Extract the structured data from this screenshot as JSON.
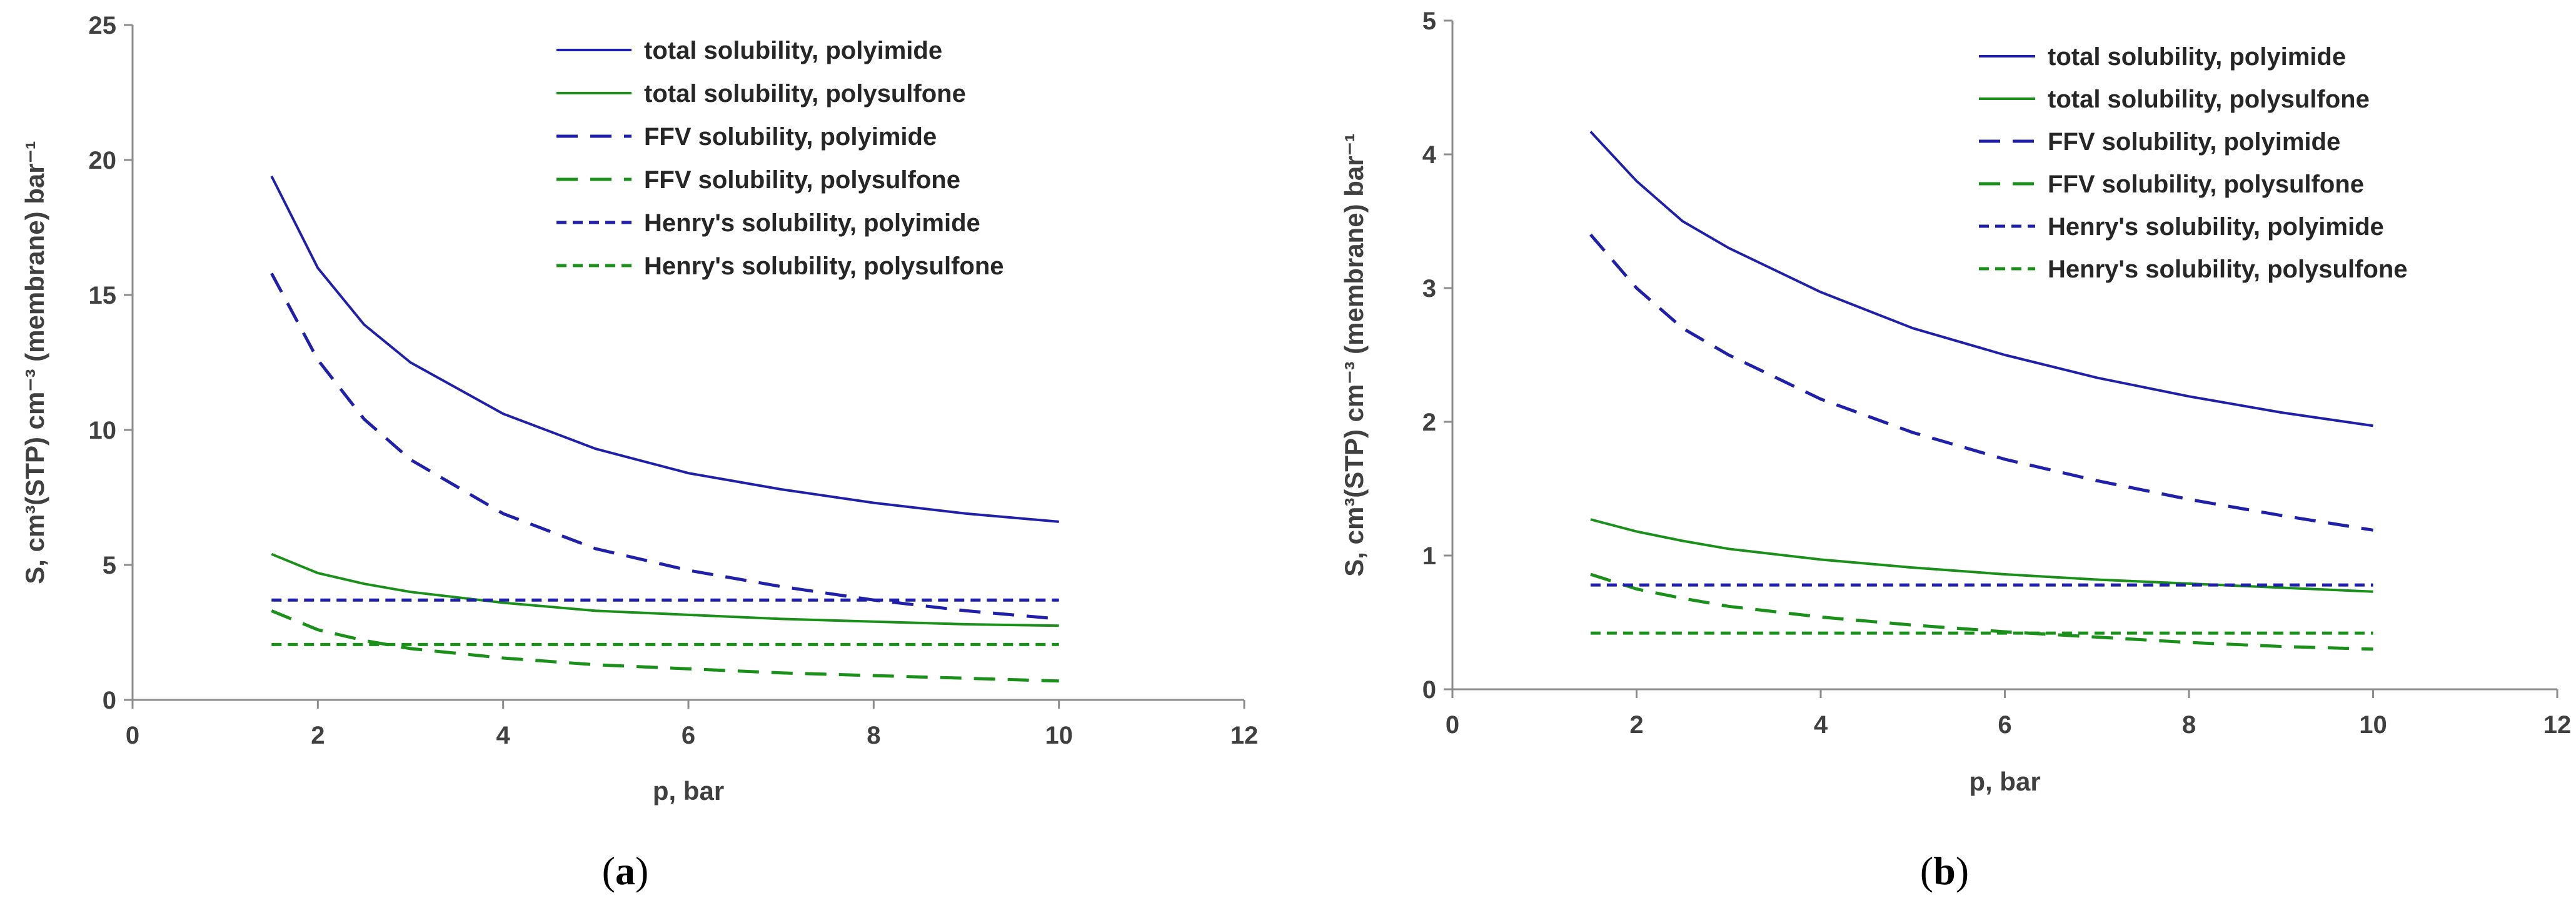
{
  "colors": {
    "polyimide": "#1f1faa",
    "polysulfone": "#1a8f1a",
    "axis": "#8c8c8c",
    "text": "#404040"
  },
  "chart_data": [
    {
      "type": "line",
      "panel_label": "a",
      "xlabel": "p, bar",
      "ylabel": "S, cm³(STP) cm⁻³ (membrane) bar⁻¹",
      "xlim": [
        0,
        12
      ],
      "ylim": [
        0,
        25
      ],
      "xticks": [
        0,
        2,
        4,
        6,
        8,
        10,
        12
      ],
      "yticks": [
        0,
        5,
        10,
        15,
        20,
        25
      ],
      "grid": false,
      "legend_position": "top-right",
      "x": [
        1.5,
        2,
        2.5,
        3,
        4,
        5,
        6,
        7,
        8,
        9,
        10
      ],
      "series": [
        {
          "name": "total solubility, polyimide",
          "style": "solid",
          "color_key": "polyimide",
          "values": [
            19.4,
            16.0,
            13.9,
            12.5,
            10.6,
            9.3,
            8.4,
            7.8,
            7.3,
            6.9,
            6.6
          ]
        },
        {
          "name": "total solubility, polysulfone",
          "style": "solid",
          "color_key": "polysulfone",
          "values": [
            5.4,
            4.7,
            4.3,
            4.0,
            3.6,
            3.3,
            3.15,
            3.0,
            2.9,
            2.8,
            2.75
          ]
        },
        {
          "name": "FFV solubility, polyimide",
          "style": "dashed",
          "color_key": "polyimide",
          "values": [
            15.8,
            12.6,
            10.4,
            8.9,
            6.9,
            5.6,
            4.8,
            4.2,
            3.7,
            3.3,
            3.0
          ]
        },
        {
          "name": "FFV solubility, polysulfone",
          "style": "dashed",
          "color_key": "polysulfone",
          "values": [
            3.3,
            2.6,
            2.2,
            1.9,
            1.55,
            1.3,
            1.15,
            1.0,
            0.9,
            0.8,
            0.7
          ]
        },
        {
          "name": "Henry's solubility, polyimide",
          "style": "dotted",
          "color_key": "polyimide",
          "values": [
            3.7,
            3.7,
            3.7,
            3.7,
            3.7,
            3.7,
            3.7,
            3.7,
            3.7,
            3.7,
            3.7
          ]
        },
        {
          "name": "Henry's solubility, polysulfone",
          "style": "dotted",
          "color_key": "polysulfone",
          "values": [
            2.05,
            2.05,
            2.05,
            2.05,
            2.05,
            2.05,
            2.05,
            2.05,
            2.05,
            2.05,
            2.05
          ]
        }
      ]
    },
    {
      "type": "line",
      "panel_label": "b",
      "xlabel": "p, bar",
      "ylabel": "S, cm³(STP) cm⁻³ (membrane) bar⁻¹",
      "xlim": [
        0,
        12
      ],
      "ylim": [
        0,
        5
      ],
      "xticks": [
        0,
        2,
        4,
        6,
        8,
        10,
        12
      ],
      "yticks": [
        0,
        1,
        2,
        3,
        4,
        5
      ],
      "grid": false,
      "legend_position": "top-right",
      "x": [
        1.5,
        2,
        2.5,
        3,
        4,
        5,
        6,
        7,
        8,
        9,
        10
      ],
      "series": [
        {
          "name": "total solubility, polyimide",
          "style": "solid",
          "color_key": "polyimide",
          "values": [
            4.17,
            3.8,
            3.5,
            3.3,
            2.97,
            2.7,
            2.5,
            2.33,
            2.19,
            2.07,
            1.97
          ]
        },
        {
          "name": "total solubility, polysulfone",
          "style": "solid",
          "color_key": "polysulfone",
          "values": [
            1.27,
            1.18,
            1.11,
            1.05,
            0.97,
            0.91,
            0.86,
            0.82,
            0.79,
            0.76,
            0.73
          ]
        },
        {
          "name": "FFV solubility, polyimide",
          "style": "dashed",
          "color_key": "polyimide",
          "values": [
            3.4,
            3.0,
            2.7,
            2.5,
            2.17,
            1.92,
            1.72,
            1.56,
            1.42,
            1.3,
            1.19
          ]
        },
        {
          "name": "FFV solubility, polysulfone",
          "style": "dashed",
          "color_key": "polysulfone",
          "values": [
            0.86,
            0.75,
            0.68,
            0.62,
            0.54,
            0.48,
            0.43,
            0.39,
            0.35,
            0.32,
            0.3
          ]
        },
        {
          "name": "Henry's solubility, polyimide",
          "style": "dotted",
          "color_key": "polyimide",
          "values": [
            0.78,
            0.78,
            0.78,
            0.78,
            0.78,
            0.78,
            0.78,
            0.78,
            0.78,
            0.78,
            0.78
          ]
        },
        {
          "name": "Henry's solubility, polysulfone",
          "style": "dotted",
          "color_key": "polysulfone",
          "values": [
            0.42,
            0.42,
            0.42,
            0.42,
            0.42,
            0.42,
            0.42,
            0.42,
            0.42,
            0.42,
            0.42
          ]
        }
      ]
    }
  ]
}
